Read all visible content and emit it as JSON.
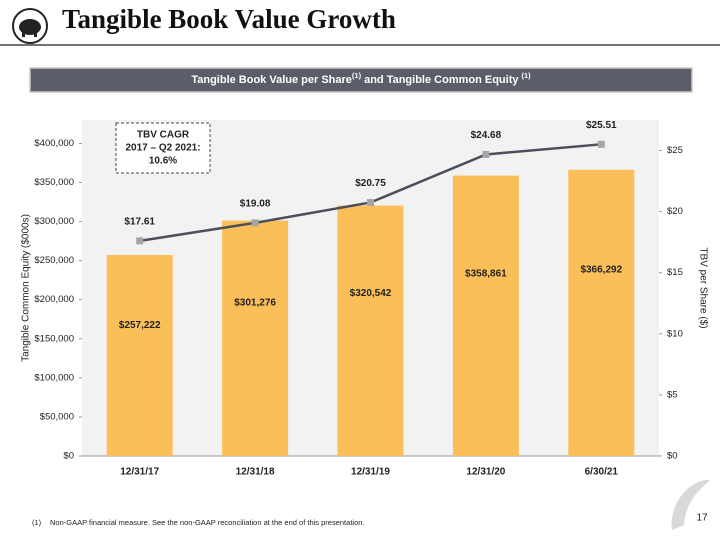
{
  "header": {
    "title": "Tangible Book Value Growth"
  },
  "chart_data": {
    "type": "bar",
    "title": [
      "Tangible Book Value per Share",
      "(1)",
      "and Tangible Common Equity",
      "(1)"
    ],
    "categories": [
      "12/31/17",
      "12/31/18",
      "12/31/19",
      "12/31/20",
      "6/30/21"
    ],
    "series": [
      {
        "type": "bar",
        "color": "#fbbf5a",
        "values": [
          257222,
          301276,
          320542,
          358861,
          366292
        ],
        "value_labels": [
          "$257,222",
          "$301,276",
          "$320,542",
          "$358,861",
          "$366,292"
        ]
      },
      {
        "type": "line",
        "axis": "y2",
        "color": "#4b4f5c",
        "marker_color": "#a6a6a6",
        "values": [
          17.61,
          19.08,
          20.75,
          24.68,
          25.51
        ],
        "value_labels": [
          "$17.61",
          "$19.08",
          "$20.75",
          "$24.68",
          "$25.51"
        ]
      }
    ],
    "ylabel": "Tangible Common Equity ($000s)",
    "y2label": "TBV per Share ($)",
    "ylim": [
      0,
      430000
    ],
    "yticks": [
      {
        "value": 0,
        "label": "$0"
      },
      {
        "value": 50000,
        "label": "$50,000"
      },
      {
        "value": 100000,
        "label": "$100,000"
      },
      {
        "value": 150000,
        "label": "$150,000"
      },
      {
        "value": 200000,
        "label": "$200,000"
      },
      {
        "value": 250000,
        "label": "$250,000"
      },
      {
        "value": 300000,
        "label": "$300,000"
      },
      {
        "value": 350000,
        "label": "$350,000"
      },
      {
        "value": 400000,
        "label": "$400,000"
      }
    ],
    "y2lim": [
      0,
      27.5
    ],
    "y2ticks": [
      {
        "value": 0,
        "label": "$0"
      },
      {
        "value": 5,
        "label": "$5"
      },
      {
        "value": 10,
        "label": "$10"
      },
      {
        "value": 15,
        "label": "$15"
      },
      {
        "value": 20,
        "label": "$20"
      },
      {
        "value": 25,
        "label": "$25"
      }
    ],
    "annotation": [
      "TBV CAGR",
      "2017 – Q2 2021:",
      "10.6%"
    ]
  },
  "footnote": {
    "marker": "(1)",
    "text": "Non-GAAP financial measure. See the non-GAAP reconciliation at the end of this presentation."
  },
  "page_number": "17"
}
